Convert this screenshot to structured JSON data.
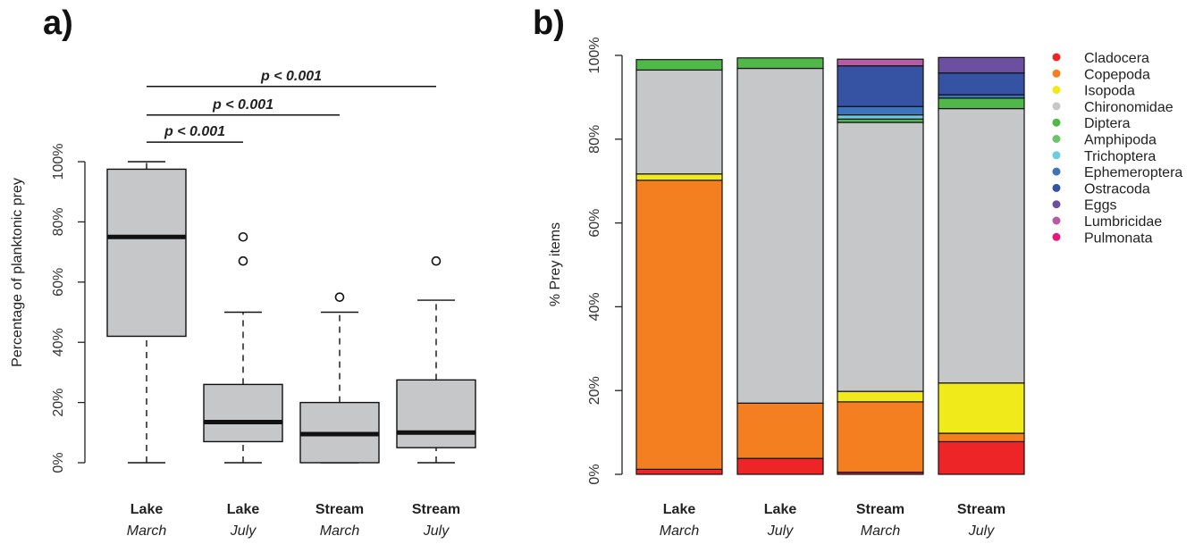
{
  "chart_data": [
    {
      "type": "boxplot",
      "panel_label": "a)",
      "ylabel": "Percentage of planktonic prey",
      "ylim": [
        0,
        100
      ],
      "yticks": [
        "0%",
        "20%",
        "40%",
        "60%",
        "80%",
        "100%"
      ],
      "ytick_values": [
        0,
        20,
        40,
        60,
        80,
        100
      ],
      "categories": [
        {
          "line1": "Lake",
          "line2": "March"
        },
        {
          "line1": "Lake",
          "line2": "July"
        },
        {
          "line1": "Stream",
          "line2": "March"
        },
        {
          "line1": "Stream",
          "line2": "July"
        }
      ],
      "boxes": [
        {
          "min": 0,
          "q1": 42,
          "median": 75,
          "q3": 97.5,
          "max": 100,
          "outliers": []
        },
        {
          "min": 0,
          "q1": 7,
          "median": 13.5,
          "q3": 26,
          "max": 50,
          "outliers": [
            67,
            75
          ]
        },
        {
          "min": 0,
          "q1": 0,
          "median": 9.5,
          "q3": 20,
          "max": 50,
          "outliers": [
            55
          ]
        },
        {
          "min": 0,
          "q1": 5,
          "median": 10,
          "q3": 27.5,
          "max": 54,
          "outliers": [
            67
          ]
        }
      ],
      "significance": [
        {
          "from": 0,
          "to": 1,
          "label": "p < 0.001",
          "y": 106.5
        },
        {
          "from": 0,
          "to": 2,
          "label": "p < 0.001",
          "y": 115.5
        },
        {
          "from": 0,
          "to": 3,
          "label": "p < 0.001",
          "y": 125
        }
      ]
    },
    {
      "type": "stacked_bar",
      "panel_label": "b)",
      "ylabel": "% Prey items",
      "ylim": [
        0,
        100
      ],
      "yticks": [
        "0%",
        "20%",
        "40%",
        "60%",
        "80%",
        "100%"
      ],
      "ytick_values": [
        0,
        20,
        40,
        60,
        80,
        100
      ],
      "categories": [
        {
          "line1": "Lake",
          "line2": "March"
        },
        {
          "line1": "Lake",
          "line2": "July"
        },
        {
          "line1": "Stream",
          "line2": "March"
        },
        {
          "line1": "Stream",
          "line2": "July"
        }
      ],
      "series": [
        {
          "name": "Cladocera",
          "color": "#ee2526",
          "values": [
            1.2,
            3.8,
            0.5,
            7.8
          ]
        },
        {
          "name": "Copepoda",
          "color": "#f47f20",
          "values": [
            69,
            13.2,
            16.8,
            2
          ]
        },
        {
          "name": "Isopoda",
          "color": "#f1ea1a",
          "values": [
            1.5,
            0,
            2.5,
            12
          ]
        },
        {
          "name": "Chironomidae",
          "color": "#c6c7c9",
          "values": [
            24.8,
            79.9,
            64.2,
            65.5
          ]
        },
        {
          "name": "Diptera",
          "color": "#4fb848",
          "values": [
            2.5,
            2.5,
            0.8,
            2.5
          ]
        },
        {
          "name": "Amphipoda",
          "color": "#6fc36b",
          "values": [
            0,
            0,
            0,
            0
          ]
        },
        {
          "name": "Trichoptera",
          "color": "#6ccbe3",
          "values": [
            0,
            0,
            1,
            0
          ]
        },
        {
          "name": "Ephemeroptera",
          "color": "#3f74bb",
          "values": [
            0,
            0,
            2,
            0.8
          ]
        },
        {
          "name": "Ostracoda",
          "color": "#3653a3",
          "values": [
            0,
            0,
            9.7,
            5.2
          ]
        },
        {
          "name": "Eggs",
          "color": "#6c4fa1",
          "values": [
            0,
            0,
            0,
            3.7
          ]
        },
        {
          "name": "Lumbricidae",
          "color": "#b95ba4",
          "values": [
            0,
            0,
            1.6,
            0
          ]
        },
        {
          "name": "Pulmonata",
          "color": "#e4197a",
          "values": [
            0,
            0,
            0,
            0
          ]
        }
      ],
      "legend_position": "top-right"
    }
  ]
}
